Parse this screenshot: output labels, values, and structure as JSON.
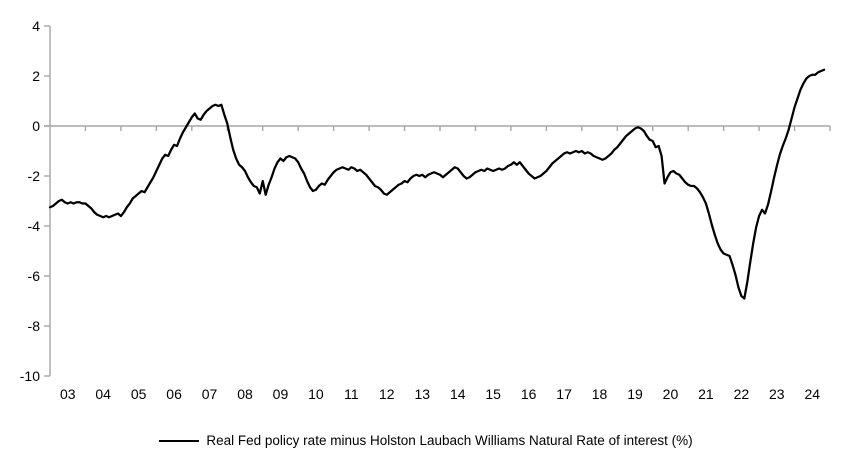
{
  "chart_data": {
    "type": "line",
    "title": "",
    "legend": "Real Fed policy rate minus Holston Laubach Williams Natural Rate of interest (%)",
    "legend_position": "bottom-center",
    "grid": "zero-line-only",
    "line_color": "#000000",
    "axis_color": "#a6a6a6",
    "ylim": [
      -10,
      4
    ],
    "y_ticks": [
      4,
      2,
      0,
      -2,
      -4,
      -6,
      -8,
      -10
    ],
    "x_range": [
      2003,
      2025
    ],
    "x_tick_labels": [
      "03",
      "04",
      "05",
      "06",
      "07",
      "08",
      "09",
      "10",
      "11",
      "12",
      "13",
      "14",
      "15",
      "16",
      "17",
      "18",
      "19",
      "20",
      "21",
      "22",
      "23",
      "24"
    ],
    "series": [
      {
        "name": "Real Fed policy rate minus Holston Laubach Williams Natural Rate of interest (%)",
        "x_start": 2003.0,
        "x_step_years": 0.0833333,
        "values": [
          -3.25,
          -3.2,
          -3.1,
          -3.0,
          -2.95,
          -3.05,
          -3.1,
          -3.05,
          -3.1,
          -3.05,
          -3.05,
          -3.1,
          -3.1,
          -3.2,
          -3.3,
          -3.45,
          -3.55,
          -3.6,
          -3.65,
          -3.6,
          -3.65,
          -3.6,
          -3.55,
          -3.5,
          -3.6,
          -3.45,
          -3.25,
          -3.1,
          -2.9,
          -2.8,
          -2.7,
          -2.6,
          -2.65,
          -2.45,
          -2.25,
          -2.05,
          -1.8,
          -1.55,
          -1.3,
          -1.15,
          -1.2,
          -0.95,
          -0.75,
          -0.8,
          -0.5,
          -0.25,
          -0.05,
          0.15,
          0.35,
          0.5,
          0.3,
          0.25,
          0.45,
          0.6,
          0.7,
          0.8,
          0.85,
          0.8,
          0.85,
          0.45,
          0.1,
          -0.45,
          -0.95,
          -1.3,
          -1.55,
          -1.65,
          -1.8,
          -2.05,
          -2.25,
          -2.4,
          -2.45,
          -2.7,
          -2.2,
          -2.75,
          -2.35,
          -2.05,
          -1.7,
          -1.45,
          -1.3,
          -1.4,
          -1.25,
          -1.2,
          -1.25,
          -1.3,
          -1.45,
          -1.7,
          -1.9,
          -2.2,
          -2.45,
          -2.6,
          -2.55,
          -2.4,
          -2.3,
          -2.35,
          -2.15,
          -2.0,
          -1.85,
          -1.75,
          -1.7,
          -1.65,
          -1.7,
          -1.75,
          -1.65,
          -1.7,
          -1.8,
          -1.75,
          -1.85,
          -1.95,
          -2.1,
          -2.25,
          -2.4,
          -2.45,
          -2.55,
          -2.7,
          -2.75,
          -2.65,
          -2.55,
          -2.45,
          -2.35,
          -2.3,
          -2.2,
          -2.25,
          -2.1,
          -2.0,
          -1.95,
          -2.0,
          -1.95,
          -2.05,
          -1.95,
          -1.9,
          -1.85,
          -1.9,
          -1.95,
          -2.05,
          -1.95,
          -1.85,
          -1.75,
          -1.65,
          -1.7,
          -1.85,
          -2.0,
          -2.1,
          -2.05,
          -1.95,
          -1.85,
          -1.8,
          -1.75,
          -1.8,
          -1.7,
          -1.75,
          -1.8,
          -1.75,
          -1.7,
          -1.75,
          -1.7,
          -1.6,
          -1.55,
          -1.45,
          -1.55,
          -1.45,
          -1.6,
          -1.75,
          -1.9,
          -2.0,
          -2.1,
          -2.05,
          -2.0,
          -1.9,
          -1.8,
          -1.65,
          -1.5,
          -1.4,
          -1.3,
          -1.2,
          -1.1,
          -1.05,
          -1.1,
          -1.05,
          -1.0,
          -1.05,
          -1.0,
          -1.1,
          -1.05,
          -1.1,
          -1.2,
          -1.25,
          -1.3,
          -1.35,
          -1.3,
          -1.2,
          -1.1,
          -0.95,
          -0.85,
          -0.7,
          -0.55,
          -0.4,
          -0.3,
          -0.2,
          -0.1,
          -0.05,
          -0.1,
          -0.2,
          -0.4,
          -0.55,
          -0.6,
          -0.85,
          -0.8,
          -1.2,
          -2.3,
          -2.05,
          -1.85,
          -1.8,
          -1.9,
          -1.95,
          -2.1,
          -2.25,
          -2.35,
          -2.4,
          -2.4,
          -2.5,
          -2.65,
          -2.85,
          -3.1,
          -3.5,
          -3.95,
          -4.35,
          -4.7,
          -4.95,
          -5.1,
          -5.15,
          -5.2,
          -5.55,
          -5.95,
          -6.45,
          -6.8,
          -6.9,
          -6.25,
          -5.45,
          -4.7,
          -4.05,
          -3.6,
          -3.35,
          -3.5,
          -3.15,
          -2.65,
          -2.1,
          -1.6,
          -1.15,
          -0.8,
          -0.5,
          -0.15,
          0.3,
          0.75,
          1.1,
          1.45,
          1.7,
          1.9,
          2.0,
          2.05,
          2.05,
          2.15,
          2.2,
          2.25
        ]
      }
    ]
  }
}
